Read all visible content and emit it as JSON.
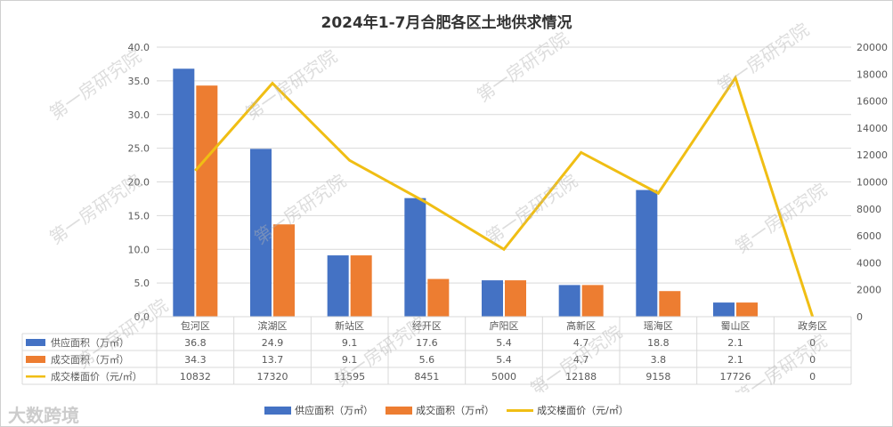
{
  "chart_data": {
    "type": "bar",
    "title": "2024年1-7月合肥各区土地供求情况",
    "categories": [
      "包河区",
      "滨湖区",
      "新站区",
      "经开区",
      "庐阳区",
      "高新区",
      "瑶海区",
      "蜀山区",
      "政务区"
    ],
    "series": [
      {
        "name": "供应面积（万㎡）",
        "type": "bar",
        "axis": "left",
        "color": "#4472C4",
        "values": [
          36.8,
          24.9,
          9.1,
          17.6,
          5.4,
          4.7,
          18.8,
          2.1,
          0
        ],
        "labels": [
          "36.8",
          "24.9",
          "9.1",
          "17.6",
          "5.4",
          "4.7",
          "18.8",
          "2.1",
          "0"
        ]
      },
      {
        "name": "成交面积（万㎡）",
        "type": "bar",
        "axis": "left",
        "color": "#ED7D31",
        "values": [
          34.3,
          13.7,
          9.1,
          5.6,
          5.4,
          4.7,
          3.8,
          2.1,
          0
        ],
        "labels": [
          "34.3",
          "13.7",
          "9.1",
          "5.6",
          "5.4",
          "4.7",
          "3.8",
          "2.1",
          "0"
        ]
      },
      {
        "name": "成交楼面价（元/㎡）",
        "type": "line",
        "axis": "right",
        "color": "#F0BE14",
        "values": [
          10832,
          17320,
          11595,
          8451,
          5000,
          12188,
          9158,
          17726,
          0
        ],
        "labels": [
          "10832",
          "17320",
          "11595",
          "8451",
          "5000",
          "12188",
          "9158",
          "17726",
          "0"
        ]
      }
    ],
    "ylim": [
      0,
      40
    ],
    "yticks": [
      "0.0",
      "5.0",
      "10.0",
      "15.0",
      "20.0",
      "25.0",
      "30.0",
      "35.0",
      "40.0"
    ],
    "y2lim": [
      0,
      20000
    ],
    "y2ticks": [
      "0",
      "2000",
      "4000",
      "6000",
      "8000",
      "10000",
      "12000",
      "14000",
      "16000",
      "18000",
      "20000"
    ],
    "grid": true,
    "legend": "bottom"
  },
  "watermark": "第一房研究院",
  "logo": "大数跨境"
}
